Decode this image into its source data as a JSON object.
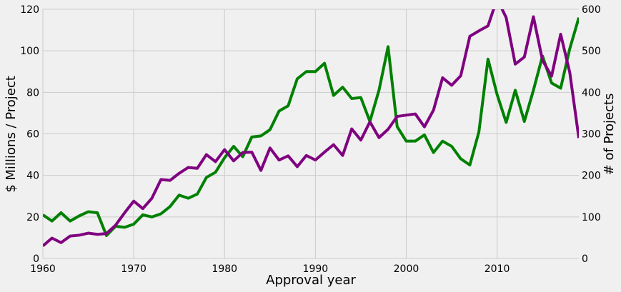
{
  "chart_data": {
    "type": "line",
    "title": "",
    "xlabel": "Approval year",
    "ylabel_left": "$ Millions / Project",
    "ylabel_right": "# of Projects",
    "xlim": [
      1960,
      2019
    ],
    "ylim_left": [
      0,
      120
    ],
    "ylim_right": [
      0,
      600
    ],
    "x_ticks": [
      1960,
      1970,
      1980,
      1990,
      2000,
      2010
    ],
    "y_ticks_left": [
      0,
      20,
      40,
      60,
      80,
      100,
      120
    ],
    "y_ticks_right": [
      0,
      100,
      200,
      300,
      400,
      500,
      600
    ],
    "grid": true,
    "x": [
      1960,
      1961,
      1962,
      1963,
      1964,
      1965,
      1966,
      1967,
      1968,
      1969,
      1970,
      1971,
      1972,
      1973,
      1974,
      1975,
      1976,
      1977,
      1978,
      1979,
      1980,
      1981,
      1982,
      1983,
      1984,
      1985,
      1986,
      1987,
      1988,
      1989,
      1990,
      1991,
      1992,
      1993,
      1994,
      1995,
      1996,
      1997,
      1998,
      1999,
      2000,
      2001,
      2002,
      2003,
      2004,
      2005,
      2006,
      2007,
      2008,
      2009,
      2010,
      2011,
      2012,
      2013,
      2014,
      2015,
      2016,
      2017,
      2018,
      2019
    ],
    "series": [
      {
        "axis": "left",
        "color": "#008000",
        "values": [
          21,
          18,
          22,
          18,
          20.5,
          22.5,
          22,
          11,
          15.5,
          15,
          16.5,
          21,
          20,
          21.5,
          25,
          30.5,
          29,
          31,
          39,
          41.5,
          48.5,
          54,
          49,
          58.5,
          59,
          62,
          71,
          73.5,
          86.5,
          90,
          90,
          94,
          78.5,
          82.5,
          77,
          77.5,
          66,
          81,
          102,
          63.5,
          56.5,
          56.5,
          59.5,
          51,
          56.5,
          54,
          48,
          45,
          61,
          96,
          79,
          65.5,
          81,
          66,
          81,
          97.5,
          84.5,
          82,
          101,
          116
        ]
      },
      {
        "axis": "right",
        "color": "#800080",
        "values": [
          30,
          49,
          38,
          54,
          56,
          61,
          58,
          60,
          80,
          110,
          138,
          120,
          145,
          190,
          188,
          205,
          219,
          217,
          250,
          233,
          262,
          235,
          255,
          256,
          212,
          266,
          237,
          247,
          221,
          248,
          237,
          256,
          274,
          248,
          312,
          285,
          329,
          291,
          311,
          342,
          345,
          348,
          317,
          357,
          435,
          417,
          440,
          535,
          548,
          560,
          625,
          580,
          468,
          485,
          582,
          477,
          439,
          540,
          448,
          290
        ]
      }
    ]
  }
}
